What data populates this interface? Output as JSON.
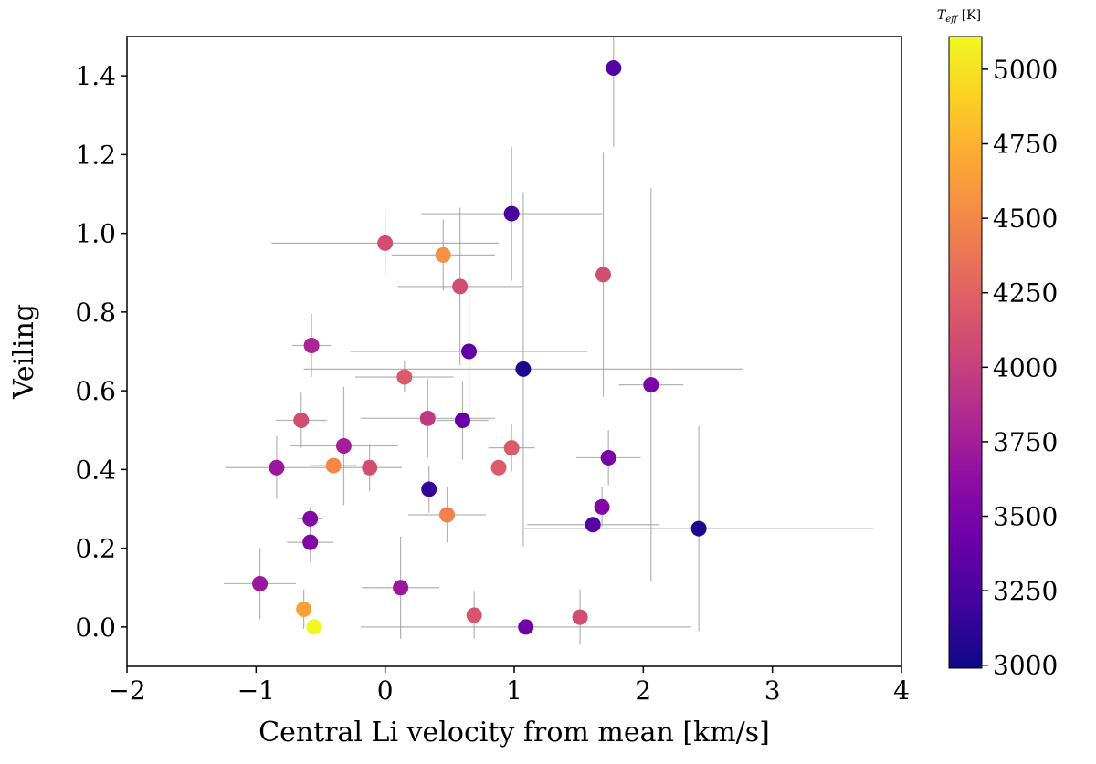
{
  "chart_data": {
    "type": "scatter",
    "title": "",
    "xlabel": "Central Li velocity from mean [km/s]",
    "ylabel": "Veiling",
    "xlim": [
      -2,
      4
    ],
    "ylim": [
      -0.1,
      1.5
    ],
    "xticks": [
      -2,
      -1,
      0,
      1,
      2,
      3,
      4
    ],
    "xtick_labels": [
      "−2",
      "−1",
      "0",
      "1",
      "2",
      "3",
      "4"
    ],
    "yticks": [
      0.0,
      0.2,
      0.4,
      0.6,
      0.8,
      1.0,
      1.2,
      1.4
    ],
    "ytick_labels": [
      "0.0",
      "0.2",
      "0.4",
      "0.6",
      "0.8",
      "1.0",
      "1.2",
      "1.4"
    ],
    "colorbar": {
      "label_main": "T",
      "label_sub": "eff",
      "label_unit": " [K]",
      "cmap": "plasma",
      "vmin": 2990,
      "vmax": 5110,
      "ticks": [
        3000,
        3250,
        3500,
        3750,
        4000,
        4250,
        4500,
        4750,
        5000
      ],
      "tick_labels": [
        "3000",
        "3250",
        "3500",
        "3750",
        "4000",
        "4250",
        "4500",
        "4750",
        "5000"
      ]
    },
    "points": [
      {
        "x": 1.77,
        "y": 1.42,
        "xerr": 0.0,
        "yerr": 0.2,
        "teff": 3300
      },
      {
        "x": 0.98,
        "y": 1.05,
        "xerr": 0.7,
        "yerr": 0.17,
        "teff": 3250
      },
      {
        "x": 0.0,
        "y": 0.975,
        "xerr": 0.88,
        "yerr": 0.08,
        "teff": 4100
      },
      {
        "x": 0.45,
        "y": 0.945,
        "xerr": 0.4,
        "yerr": 0.09,
        "teff": 4550
      },
      {
        "x": 1.69,
        "y": 0.895,
        "xerr": 0.0,
        "yerr": 0.31,
        "teff": 4100
      },
      {
        "x": 0.58,
        "y": 0.865,
        "xerr": 0.48,
        "yerr": 0.2,
        "teff": 4100
      },
      {
        "x": -0.57,
        "y": 0.715,
        "xerr": 0.15,
        "yerr": 0.08,
        "teff": 3800
      },
      {
        "x": 0.65,
        "y": 0.7,
        "xerr": 0.92,
        "yerr": 0.2,
        "teff": 3350
      },
      {
        "x": 1.07,
        "y": 0.655,
        "xerr": 1.7,
        "yerr": 0.45,
        "teff": 3050
      },
      {
        "x": 0.15,
        "y": 0.635,
        "xerr": 0.38,
        "yerr": 0.04,
        "teff": 4200
      },
      {
        "x": 2.06,
        "y": 0.615,
        "xerr": 0.25,
        "yerr": 0.5,
        "teff": 3500
      },
      {
        "x": 0.33,
        "y": 0.53,
        "xerr": 0.52,
        "yerr": 0.1,
        "teff": 3950
      },
      {
        "x": 0.6,
        "y": 0.525,
        "xerr": 0.2,
        "yerr": 0.1,
        "teff": 3400
      },
      {
        "x": -0.65,
        "y": 0.525,
        "xerr": 0.2,
        "yerr": 0.07,
        "teff": 4100
      },
      {
        "x": -0.32,
        "y": 0.46,
        "xerr": 0.42,
        "yerr": 0.15,
        "teff": 3750
      },
      {
        "x": 0.98,
        "y": 0.455,
        "xerr": 0.18,
        "yerr": 0.06,
        "teff": 4200
      },
      {
        "x": 1.73,
        "y": 0.43,
        "xerr": 0.25,
        "yerr": 0.07,
        "teff": 3500
      },
      {
        "x": -0.4,
        "y": 0.41,
        "xerr": 0.18,
        "yerr": 0.0,
        "teff": 4500
      },
      {
        "x": 0.88,
        "y": 0.405,
        "xerr": 0.0,
        "yerr": 0.0,
        "teff": 4200
      },
      {
        "x": -0.12,
        "y": 0.405,
        "xerr": 0.25,
        "yerr": 0.06,
        "teff": 4100
      },
      {
        "x": -0.84,
        "y": 0.405,
        "xerr": 0.4,
        "yerr": 0.08,
        "teff": 3700
      },
      {
        "x": 0.34,
        "y": 0.35,
        "xerr": 0.0,
        "yerr": 0.06,
        "teff": 3150
      },
      {
        "x": 1.68,
        "y": 0.305,
        "xerr": 0.0,
        "yerr": 0.05,
        "teff": 3550
      },
      {
        "x": -0.58,
        "y": 0.275,
        "xerr": 0.1,
        "yerr": 0.03,
        "teff": 3550
      },
      {
        "x": 0.48,
        "y": 0.285,
        "xerr": 0.3,
        "yerr": 0.07,
        "teff": 4450
      },
      {
        "x": 1.61,
        "y": 0.26,
        "xerr": 0.51,
        "yerr": 0.0,
        "teff": 3300
      },
      {
        "x": 2.43,
        "y": 0.25,
        "xerr": 1.35,
        "yerr": 0.26,
        "teff": 3050
      },
      {
        "x": -0.58,
        "y": 0.215,
        "xerr": 0.18,
        "yerr": 0.05,
        "teff": 3550
      },
      {
        "x": -0.97,
        "y": 0.11,
        "xerr": 0.28,
        "yerr": 0.09,
        "teff": 3700
      },
      {
        "x": 0.12,
        "y": 0.1,
        "xerr": 0.3,
        "yerr": 0.13,
        "teff": 3700
      },
      {
        "x": -0.63,
        "y": 0.045,
        "xerr": 0.0,
        "yerr": 0.05,
        "teff": 4650
      },
      {
        "x": 0.69,
        "y": 0.03,
        "xerr": 0.0,
        "yerr": 0.06,
        "teff": 4150
      },
      {
        "x": 1.51,
        "y": 0.025,
        "xerr": 0.0,
        "yerr": 0.07,
        "teff": 4100
      },
      {
        "x": -0.55,
        "y": 0.0,
        "xerr": 0.0,
        "yerr": 0.0,
        "teff": 5100
      },
      {
        "x": 1.09,
        "y": 0.0,
        "xerr": 1.28,
        "yerr": 0.0,
        "teff": 3450
      }
    ]
  }
}
